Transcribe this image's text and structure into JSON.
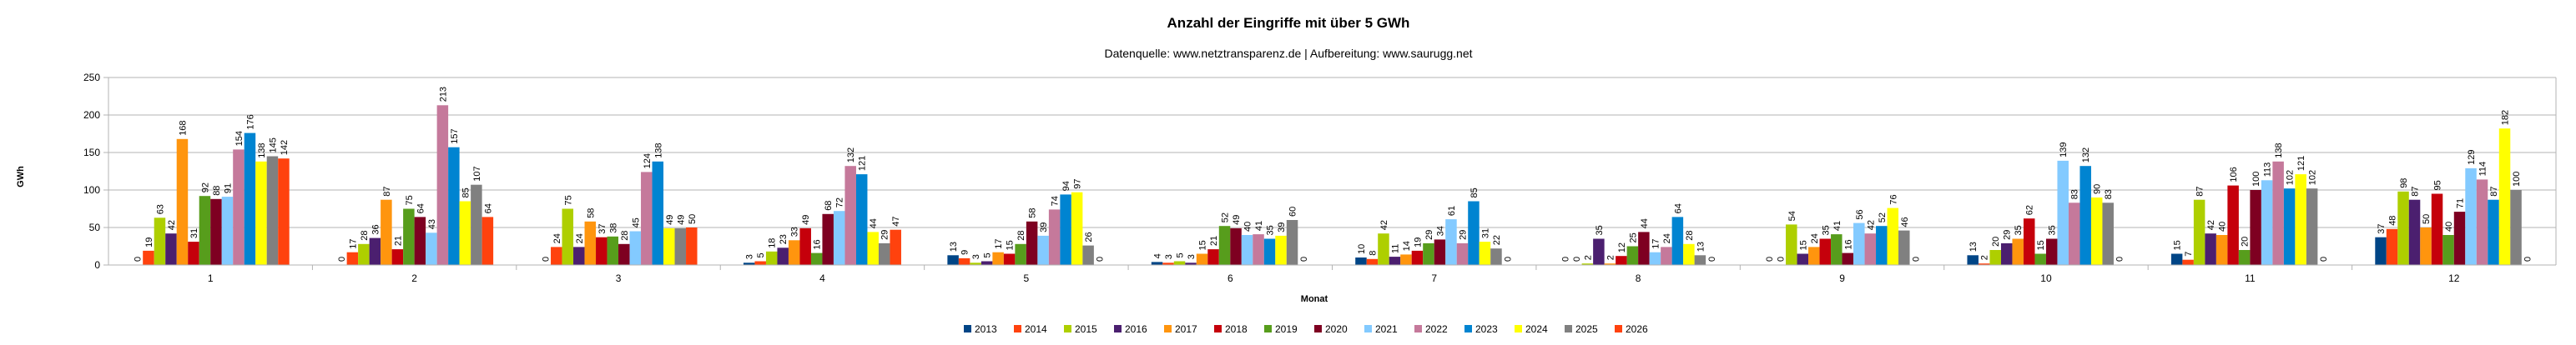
{
  "chart_data": {
    "type": "bar",
    "title": "Anzahl der Eingriffe mit über 5 GWh",
    "subtitle": "Datenquelle: www.netztransparenz.de  | Aufbereitung: www.saurugg.net",
    "xlabel": "Monat",
    "ylabel": "GWh",
    "ylim": [
      0,
      250
    ],
    "yticks": [
      0,
      50,
      100,
      150,
      200,
      250
    ],
    "grid": "horizontal",
    "legend_position": "bottom",
    "categories": [
      "1",
      "2",
      "3",
      "4",
      "5",
      "6",
      "7",
      "8",
      "9",
      "10",
      "11",
      "12"
    ],
    "series": [
      {
        "name": "2013",
        "color": "#004586",
        "values": [
          0,
          0,
          0,
          3,
          13,
          4,
          10,
          0,
          0,
          13,
          15,
          37
        ]
      },
      {
        "name": "2014",
        "color": "#ff420e",
        "values": [
          19,
          17,
          24,
          5,
          9,
          3,
          8,
          0,
          0,
          2,
          7,
          48
        ]
      },
      {
        "name": "2015",
        "color": "#aecf00",
        "values": [
          63,
          28,
          75,
          18,
          3,
          5,
          42,
          2,
          54,
          20,
          87,
          98
        ]
      },
      {
        "name": "2016",
        "color": "#4b1f6f",
        "values": [
          42,
          36,
          24,
          23,
          5,
          3,
          11,
          35,
          15,
          29,
          42,
          87
        ]
      },
      {
        "name": "2017",
        "color": "#ff950e",
        "values": [
          168,
          87,
          58,
          33,
          17,
          15,
          14,
          2,
          24,
          35,
          40,
          50
        ]
      },
      {
        "name": "2018",
        "color": "#c5000b",
        "values": [
          31,
          21,
          37,
          49,
          15,
          21,
          19,
          12,
          35,
          62,
          106,
          95
        ]
      },
      {
        "name": "2019",
        "color": "#579d1c",
        "values": [
          92,
          75,
          38,
          16,
          28,
          52,
          29,
          25,
          41,
          15,
          20,
          40
        ]
      },
      {
        "name": "2020",
        "color": "#7e0021",
        "values": [
          88,
          64,
          28,
          68,
          58,
          49,
          34,
          44,
          16,
          35,
          100,
          71
        ]
      },
      {
        "name": "2021",
        "color": "#83caff",
        "values": [
          91,
          43,
          45,
          72,
          39,
          40,
          61,
          17,
          56,
          139,
          113,
          129
        ]
      },
      {
        "name": "2022",
        "color": "#c5799b",
        "values": [
          154,
          213,
          124,
          132,
          74,
          41,
          29,
          24,
          42,
          83,
          138,
          114
        ]
      },
      {
        "name": "2023",
        "color": "#0084d1",
        "values": [
          176,
          157,
          138,
          121,
          94,
          35,
          85,
          64,
          52,
          132,
          102,
          87
        ]
      },
      {
        "name": "2024",
        "color": "#ffff00",
        "values": [
          138,
          85,
          49,
          44,
          97,
          39,
          31,
          28,
          76,
          90,
          121,
          182
        ]
      },
      {
        "name": "2025",
        "color": "#808080",
        "values": [
          145,
          107,
          49,
          29,
          26,
          60,
          22,
          13,
          46,
          83,
          102,
          100
        ]
      },
      {
        "name": "2026",
        "color": "#ff420e",
        "values": [
          142,
          64,
          50,
          47,
          0,
          0,
          0,
          0,
          0,
          0,
          0,
          0
        ]
      }
    ]
  }
}
